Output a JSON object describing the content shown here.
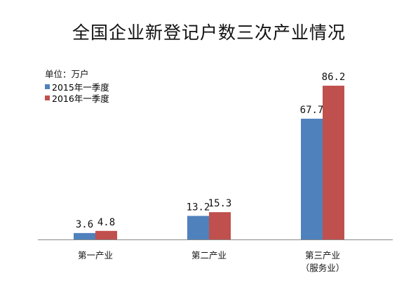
{
  "chart_data": {
    "type": "bar",
    "title": "全国企业新登记户数三次产业情况",
    "unit_label": "单位：万户",
    "categories": [
      [
        "第一产业"
      ],
      [
        "第二产业"
      ],
      [
        "第三产业",
        "（服务业）"
      ]
    ],
    "series": [
      {
        "name": "2015年一季度",
        "color": "#4f81bd",
        "values": [
          3.6,
          13.2,
          67.7
        ],
        "labels": [
          "3.6",
          "13.2",
          "67.7"
        ]
      },
      {
        "name": "2016年一季度",
        "color": "#c0504d",
        "values": [
          4.8,
          15.3,
          86.2
        ],
        "labels": [
          "4.8",
          "15.3",
          "86.2"
        ]
      }
    ],
    "ylim": [
      0,
      100
    ],
    "grid": false,
    "y_axis_visible": false,
    "legend_position": "top-left",
    "data_labels": true
  }
}
